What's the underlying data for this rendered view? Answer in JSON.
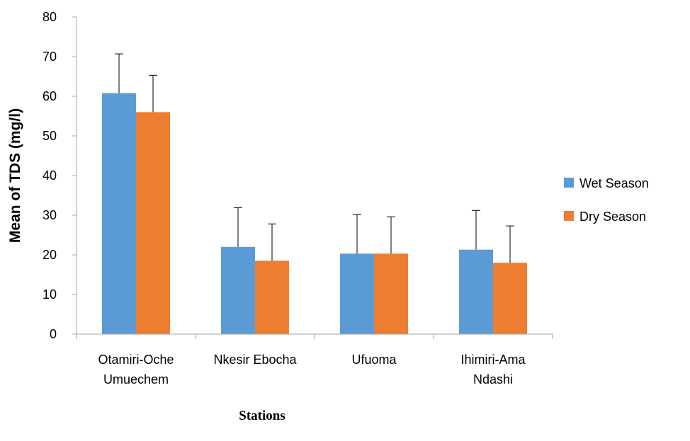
{
  "chart_data": {
    "type": "bar",
    "title": "",
    "xlabel": "Stations",
    "ylabel": "Mean of TDS (mg/l)",
    "ylim": [
      0,
      80
    ],
    "yticks": [
      0,
      10,
      20,
      30,
      40,
      50,
      60,
      70,
      80
    ],
    "grid": false,
    "legend_position": "right",
    "categories": [
      [
        "Otamiri-Oche",
        "Umuechem"
      ],
      [
        "Nkesir Ebocha"
      ],
      [
        "Ufuoma"
      ],
      [
        "Ihimiri-Ama",
        "Ndashi"
      ]
    ],
    "series": [
      {
        "name": "Wet Season",
        "color": "#5b9bd5",
        "values": [
          60.8,
          22.0,
          20.3,
          21.3
        ],
        "error_plus": [
          9.9,
          9.9,
          9.9,
          9.9
        ]
      },
      {
        "name": "Dry Season",
        "color": "#ed7d31",
        "values": [
          56.0,
          18.5,
          20.3,
          18.0
        ],
        "error_plus": [
          9.3,
          9.3,
          9.3,
          9.3
        ]
      }
    ]
  }
}
